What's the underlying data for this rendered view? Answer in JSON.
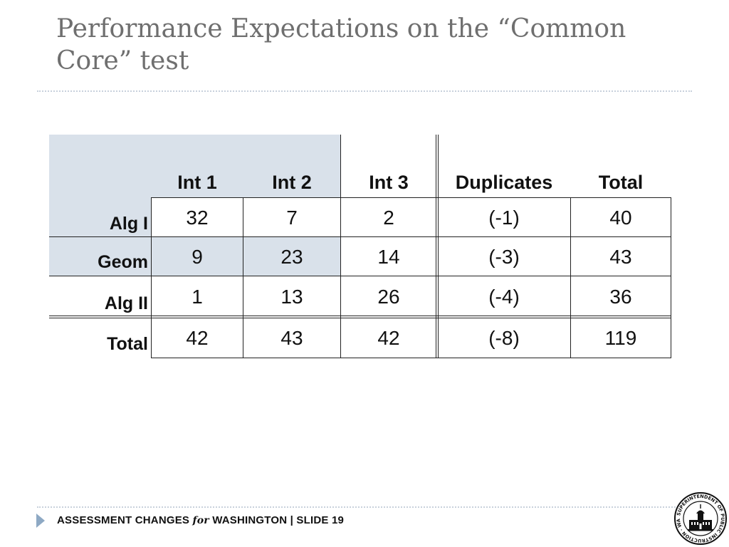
{
  "slide": {
    "title": "Performance Expectations on the “Common Core” test"
  },
  "table": {
    "headers": {
      "int1": "Int 1",
      "int2": "Int 2",
      "int3": "Int 3",
      "duplicates": "Duplicates",
      "total": "Total"
    },
    "rows": [
      {
        "label": "Alg I",
        "int1": "32",
        "int2": "7",
        "int3": "2",
        "duplicates": "(-1)",
        "total": "40"
      },
      {
        "label": "Geom",
        "int1": "9",
        "int2": "23",
        "int3": "14",
        "duplicates": "(-3)",
        "total": "43"
      },
      {
        "label": "Alg II",
        "int1": "1",
        "int2": "13",
        "int3": "26",
        "duplicates": "(-4)",
        "total": "36"
      },
      {
        "label": "Total",
        "int1": "42",
        "int2": "43",
        "int3": "42",
        "duplicates": "(-8)",
        "total": "119"
      }
    ]
  },
  "footer": {
    "part1": "ASSESSMENT CHANGES ",
    "part_for": "for",
    "part2": " WASHINGTON  |  SLIDE 19"
  },
  "logo": {
    "icon": "superintendent-seal-icon",
    "text": "SUPERINTENDENT OF PUBLIC INSTRUCTION · WASHINGTON"
  },
  "colors": {
    "title": "#6f6f6f",
    "shading": "#d9e1ea",
    "accent": "#8ea9c4"
  }
}
